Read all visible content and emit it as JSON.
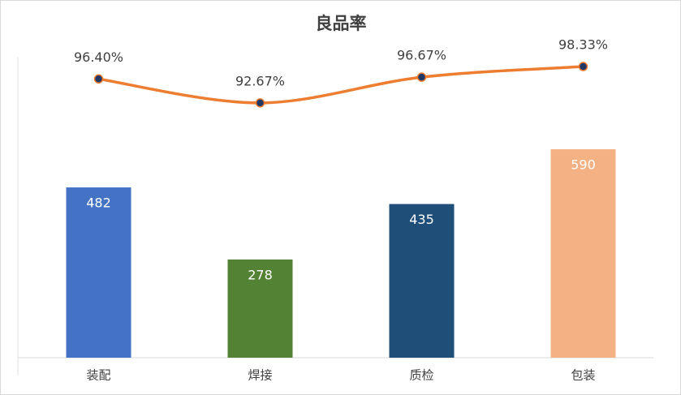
{
  "chart_data": {
    "type": "combo",
    "title": "良品率",
    "categories": [
      "装配",
      "焊接",
      "质检",
      "包装"
    ],
    "series": [
      {
        "type": "bar",
        "colors": [
          "#4472c4",
          "#548235",
          "#1f4e79",
          "#f4b183"
        ],
        "values": [
          482,
          278,
          435,
          590
        ]
      },
      {
        "type": "line",
        "axis": "y2",
        "color": "#ed7d31",
        "marker_color": "#203864",
        "values": [
          96.4,
          92.67,
          96.67,
          98.33
        ],
        "value_labels": [
          "96.40%",
          "92.67%",
          "96.67%",
          "98.33%"
        ]
      }
    ],
    "ylim": [
      0,
      900
    ],
    "y2lim": [
      53,
      102.5
    ]
  }
}
